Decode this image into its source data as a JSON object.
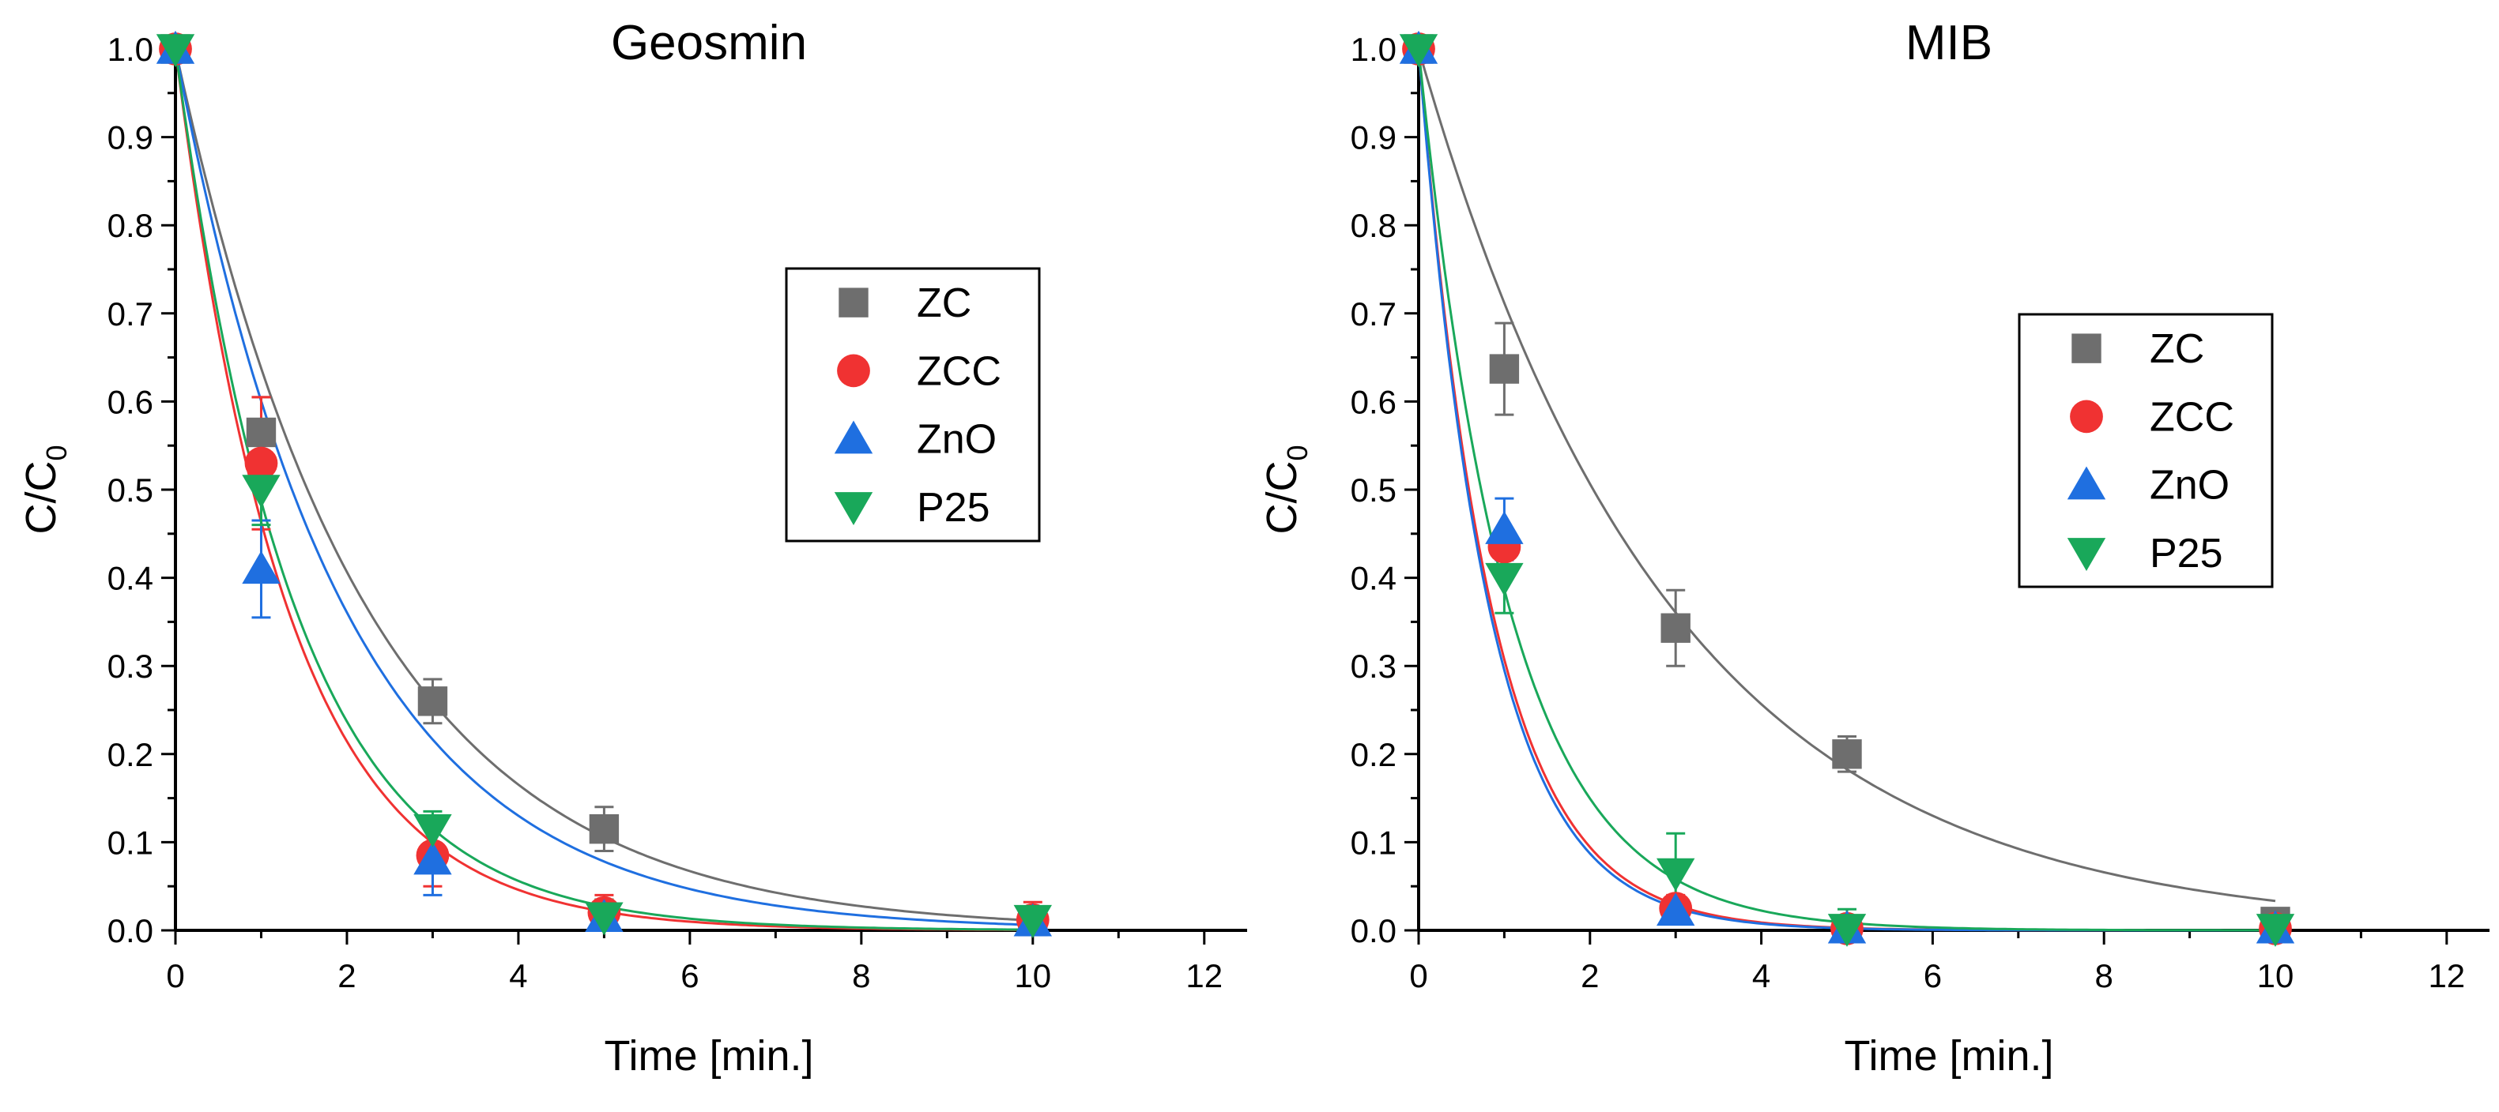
{
  "chart_data": [
    {
      "type": "scatter",
      "title": "Geosmin",
      "xlabel": "Time [min.]",
      "ylabel_main": "C/C",
      "ylabel_sub": "0",
      "xlim": [
        0,
        12.5
      ],
      "ylim": [
        0,
        1.0
      ],
      "xticks": [
        "0",
        "2",
        "4",
        "6",
        "8",
        "10",
        "12"
      ],
      "yticks": [
        "0.0",
        "0.1",
        "0.2",
        "0.3",
        "0.4",
        "0.5",
        "0.6",
        "0.7",
        "0.8",
        "0.9",
        "1.0"
      ],
      "legend_position": "upper-right",
      "series": [
        {
          "name": "ZC",
          "marker": "square",
          "color": "#6e6e6e",
          "x": [
            0,
            1,
            3,
            5,
            10
          ],
          "y": [
            1.0,
            0.565,
            0.26,
            0.115,
            0.01
          ],
          "err": [
            0,
            0.04,
            0.025,
            0.025,
            0.01
          ],
          "fit_k": 0.45
        },
        {
          "name": "ZCC",
          "marker": "circle",
          "color": "#f03232",
          "x": [
            0,
            1,
            3,
            5,
            10
          ],
          "y": [
            1.0,
            0.53,
            0.085,
            0.02,
            0.012
          ],
          "err": [
            0,
            0.075,
            0.035,
            0.02,
            0.02
          ],
          "fit_k": 0.77
        },
        {
          "name": "ZnO",
          "marker": "triangle-up",
          "color": "#1f6fe0",
          "x": [
            0,
            1,
            3,
            5,
            10
          ],
          "y": [
            1.0,
            0.41,
            0.08,
            0.015,
            0.01
          ],
          "err": [
            0,
            0.055,
            0.04,
            0.02,
            0.015
          ],
          "fit_k": 0.51
        },
        {
          "name": "P25",
          "marker": "triangle-down",
          "color": "#19a85a",
          "x": [
            0,
            1,
            3,
            5,
            10
          ],
          "y": [
            1.0,
            0.5,
            0.115,
            0.015,
            0.012
          ],
          "err": [
            0,
            0.04,
            0.02,
            0.02,
            0.015
          ],
          "fit_k": 0.72
        }
      ]
    },
    {
      "type": "scatter",
      "title": "MIB",
      "xlabel": "Time [min.]",
      "ylabel_main": "C/C",
      "ylabel_sub": "0",
      "xlim": [
        0,
        12.5
      ],
      "ylim": [
        0,
        1.0
      ],
      "xticks": [
        "0",
        "2",
        "4",
        "6",
        "8",
        "10",
        "12"
      ],
      "yticks": [
        "0.0",
        "0.1",
        "0.2",
        "0.3",
        "0.4",
        "0.5",
        "0.6",
        "0.7",
        "0.8",
        "0.9",
        "1.0"
      ],
      "legend_position": "upper-right",
      "series": [
        {
          "name": "ZC",
          "marker": "square",
          "color": "#6e6e6e",
          "x": [
            0,
            1,
            3,
            5,
            10
          ],
          "y": [
            1.0,
            0.637,
            0.343,
            0.2,
            0.01
          ],
          "err": [
            0,
            0.052,
            0.043,
            0.02,
            0.015
          ],
          "fit_k": 0.34
        },
        {
          "name": "ZCC",
          "marker": "circle",
          "color": "#f03232",
          "x": [
            0,
            1,
            3,
            5,
            10
          ],
          "y": [
            1.0,
            0.435,
            0.025,
            0.002,
            0.002
          ],
          "err": [
            0,
            0.02,
            0.015,
            0.005,
            0.005
          ],
          "fit_k": 1.18
        },
        {
          "name": "ZnO",
          "marker": "triangle-up",
          "color": "#1f6fe0",
          "x": [
            0,
            1,
            3,
            5,
            10
          ],
          "y": [
            1.0,
            0.455,
            0.022,
            0.002,
            0.002
          ],
          "err": [
            0,
            0.035,
            0.015,
            0.005,
            0.005
          ],
          "fit_k": 1.22
        },
        {
          "name": "P25",
          "marker": "triangle-down",
          "color": "#19a85a",
          "x": [
            0,
            1,
            3,
            5,
            10
          ],
          "y": [
            1.0,
            0.4,
            0.065,
            0.002,
            0.002
          ],
          "err": [
            0,
            0.04,
            0.045,
            0.022,
            0.005
          ],
          "fit_k": 0.95
        }
      ]
    }
  ]
}
